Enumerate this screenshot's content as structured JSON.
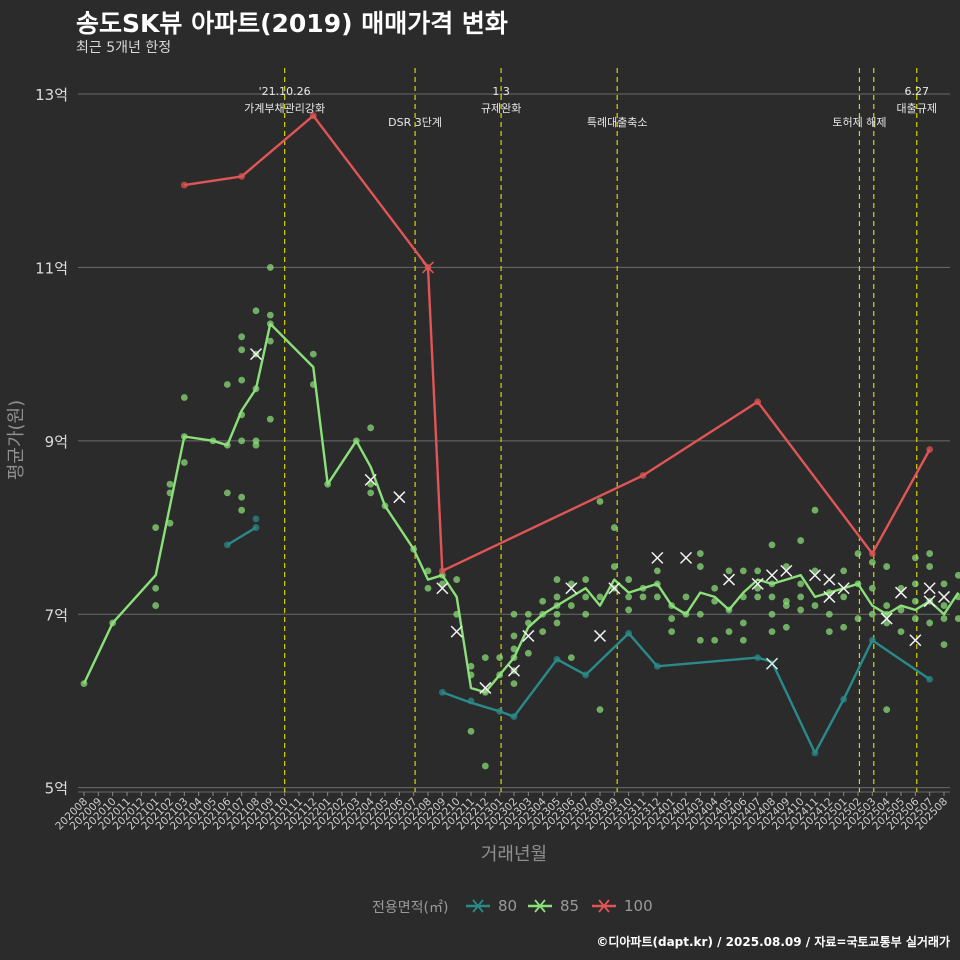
{
  "title": "송도SK뷰 아파트(2019) 매매가격 변화",
  "subtitle": "최근 5개년 한정",
  "caption": "©디아파트(dapt.kr) / 2025.08.09 / 자료=국토교통부 실거래가",
  "colors": {
    "s80": "#2a8a8a",
    "s85": "#8ce07a",
    "s100": "#e05555",
    "vline": "#d8d400",
    "grid": "#6a6a6a",
    "bg": "#2b2b2b"
  },
  "chart_data": {
    "type": "line",
    "title": "송도SK뷰 아파트(2019) 매매가격 변화",
    "subtitle": "최근 5개년 한정",
    "xlabel": "거래년월",
    "ylabel": "평균가(원)",
    "ylim": [
      4.95,
      13.3
    ],
    "yticks": [
      5,
      7,
      9,
      11,
      13
    ],
    "ytick_labels": [
      "5억",
      "7억",
      "9억",
      "11억",
      "13억"
    ],
    "grid": true,
    "legend_title": "전용면적(㎡)",
    "legend_position": "bottom",
    "x_months": [
      "202008",
      "202009",
      "202010",
      "202011",
      "202012",
      "202101",
      "202102",
      "202103",
      "202104",
      "202105",
      "202106",
      "202107",
      "202108",
      "202109",
      "202110",
      "202111",
      "202112",
      "202201",
      "202202",
      "202203",
      "202204",
      "202205",
      "202206",
      "202207",
      "202208",
      "202209",
      "202210",
      "202211",
      "202212",
      "202301",
      "202302",
      "202303",
      "202304",
      "202305",
      "202306",
      "202307",
      "202308",
      "202309",
      "202310",
      "202311",
      "202312",
      "202401",
      "202402",
      "202403",
      "202404",
      "202405",
      "202406",
      "202407",
      "202408",
      "202409",
      "202410",
      "202411",
      "202412",
      "202501",
      "202502",
      "202503",
      "202504",
      "202505",
      "202506",
      "202507",
      "202508"
    ],
    "events": [
      {
        "x": 14.0,
        "lines": [
          "'21.10.26",
          "가계부채관리강화"
        ]
      },
      {
        "x": 23.1,
        "lines": [
          "DSR 3단계"
        ]
      },
      {
        "x": 29.1,
        "lines": [
          "1.3",
          "규제완화"
        ]
      },
      {
        "x": 37.2,
        "lines": [
          "특례대출축소"
        ]
      },
      {
        "x": 54.1,
        "lines": [
          "토허제 해제"
        ]
      },
      {
        "x": 55.1,
        "lines": []
      },
      {
        "x": 58.1,
        "lines": [
          "6.27",
          "대출규제"
        ]
      }
    ],
    "series": [
      {
        "name": "80",
        "color": "#2a8a8a",
        "line": [
          [
            10,
            7.8
          ],
          [
            12,
            8.0
          ]
        ],
        "line2": [
          [
            25,
            6.1
          ],
          [
            27,
            5.98
          ],
          [
            29,
            5.88
          ],
          [
            30,
            5.82
          ],
          [
            33,
            6.48
          ],
          [
            35,
            6.3
          ],
          [
            38,
            6.78
          ],
          [
            40,
            6.4
          ],
          [
            47,
            6.5
          ],
          [
            48,
            6.45
          ],
          [
            51,
            5.4
          ],
          [
            53,
            6.02
          ],
          [
            55,
            6.7
          ],
          [
            59,
            6.25
          ]
        ],
        "points": [
          [
            10,
            7.8
          ],
          [
            12,
            8.0
          ],
          [
            12,
            8.1
          ],
          [
            25,
            6.1
          ],
          [
            27,
            6.0
          ],
          [
            29,
            5.88
          ],
          [
            30,
            5.82
          ],
          [
            33,
            6.48
          ],
          [
            35,
            6.3
          ],
          [
            38,
            6.78
          ],
          [
            40,
            6.4
          ],
          [
            47,
            6.5
          ],
          [
            51,
            5.4
          ],
          [
            53,
            6.02
          ],
          [
            55,
            6.7
          ],
          [
            59,
            6.25
          ]
        ],
        "cancelled": [
          [
            48,
            6.43
          ]
        ]
      },
      {
        "name": "85",
        "color": "#8ce07a",
        "line": [
          [
            0,
            6.2
          ],
          [
            2,
            6.9
          ],
          [
            5,
            7.45
          ],
          [
            7,
            9.05
          ],
          [
            9,
            9.0
          ],
          [
            10,
            8.95
          ],
          [
            11,
            9.35
          ],
          [
            12,
            9.6
          ],
          [
            13,
            10.35
          ],
          [
            16,
            9.85
          ],
          [
            17,
            8.5
          ],
          [
            19,
            9.0
          ],
          [
            20,
            8.7
          ],
          [
            21,
            8.25
          ],
          [
            23,
            7.75
          ],
          [
            24,
            7.4
          ],
          [
            25,
            7.45
          ],
          [
            26,
            7.2
          ],
          [
            27,
            6.15
          ],
          [
            28,
            6.1
          ],
          [
            29,
            6.3
          ],
          [
            30,
            6.5
          ],
          [
            31,
            6.85
          ],
          [
            32,
            7.0
          ],
          [
            33,
            7.1
          ],
          [
            34,
            7.2
          ],
          [
            35,
            7.3
          ],
          [
            36,
            7.1
          ],
          [
            37,
            7.4
          ],
          [
            38,
            7.25
          ],
          [
            39,
            7.3
          ],
          [
            40,
            7.35
          ],
          [
            41,
            7.1
          ],
          [
            42,
            7.0
          ],
          [
            43,
            7.25
          ],
          [
            44,
            7.2
          ],
          [
            45,
            7.05
          ],
          [
            46,
            7.25
          ],
          [
            47,
            7.4
          ],
          [
            48,
            7.35
          ],
          [
            49,
            7.4
          ],
          [
            50,
            7.45
          ],
          [
            51,
            7.2
          ],
          [
            52,
            7.25
          ],
          [
            53,
            7.3
          ],
          [
            54,
            7.35
          ],
          [
            55,
            7.1
          ],
          [
            56,
            7.0
          ],
          [
            57,
            7.1
          ],
          [
            58,
            7.05
          ],
          [
            59,
            7.15
          ],
          [
            60,
            7.0
          ],
          [
            61,
            7.25
          ]
        ],
        "points": [
          [
            0,
            6.2
          ],
          [
            2,
            6.9
          ],
          [
            5,
            7.1
          ],
          [
            5,
            7.3
          ],
          [
            5,
            8.0
          ],
          [
            6,
            8.05
          ],
          [
            6,
            8.4
          ],
          [
            6,
            8.5
          ],
          [
            7,
            9.5
          ],
          [
            7,
            8.75
          ],
          [
            7,
            9.05
          ],
          [
            9,
            9.0
          ],
          [
            10,
            8.95
          ],
          [
            10,
            8.4
          ],
          [
            10,
            9.65
          ],
          [
            11,
            8.2
          ],
          [
            11,
            8.35
          ],
          [
            11,
            9.0
          ],
          [
            11,
            9.3
          ],
          [
            11,
            9.7
          ],
          [
            11,
            10.05
          ],
          [
            11,
            10.2
          ],
          [
            12,
            8.95
          ],
          [
            12,
            9.0
          ],
          [
            12,
            10.0
          ],
          [
            12,
            10.5
          ],
          [
            12,
            9.6
          ],
          [
            13,
            11.0
          ],
          [
            13,
            10.45
          ],
          [
            13,
            10.35
          ],
          [
            13,
            9.25
          ],
          [
            13,
            10.15
          ],
          [
            16,
            10.0
          ],
          [
            16,
            9.65
          ],
          [
            17,
            8.5
          ],
          [
            19,
            9.0
          ],
          [
            20,
            9.15
          ],
          [
            20,
            8.5
          ],
          [
            20,
            8.4
          ],
          [
            21,
            8.25
          ],
          [
            23,
            7.75
          ],
          [
            24,
            7.5
          ],
          [
            24,
            7.3
          ],
          [
            25,
            7.45
          ],
          [
            25,
            7.35
          ],
          [
            26,
            7.4
          ],
          [
            26,
            7.0
          ],
          [
            27,
            6.4
          ],
          [
            27,
            5.65
          ],
          [
            27,
            6.3
          ],
          [
            28,
            5.25
          ],
          [
            28,
            6.5
          ],
          [
            28,
            6.1
          ],
          [
            29,
            6.3
          ],
          [
            29,
            6.5
          ],
          [
            30,
            6.35
          ],
          [
            30,
            6.5
          ],
          [
            30,
            6.6
          ],
          [
            30,
            6.2
          ],
          [
            30,
            7.0
          ],
          [
            30,
            6.75
          ],
          [
            31,
            6.9
          ],
          [
            31,
            6.55
          ],
          [
            31,
            7.0
          ],
          [
            32,
            7.0
          ],
          [
            32,
            7.15
          ],
          [
            32,
            6.8
          ],
          [
            33,
            7.2
          ],
          [
            33,
            7.4
          ],
          [
            33,
            7.1
          ],
          [
            33,
            6.9
          ],
          [
            33,
            7.0
          ],
          [
            34,
            7.35
          ],
          [
            34,
            7.1
          ],
          [
            34,
            6.5
          ],
          [
            35,
            7.4
          ],
          [
            35,
            7.2
          ],
          [
            35,
            7.0
          ],
          [
            36,
            8.3
          ],
          [
            36,
            5.9
          ],
          [
            36,
            7.2
          ],
          [
            37,
            7.55
          ],
          [
            37,
            7.3
          ],
          [
            37,
            8.0
          ],
          [
            38,
            7.4
          ],
          [
            38,
            7.2
          ],
          [
            38,
            7.05
          ],
          [
            39,
            7.3
          ],
          [
            39,
            7.2
          ],
          [
            40,
            7.35
          ],
          [
            40,
            7.2
          ],
          [
            40,
            7.5
          ],
          [
            41,
            7.1
          ],
          [
            41,
            6.8
          ],
          [
            41,
            6.95
          ],
          [
            42,
            7.0
          ],
          [
            42,
            7.2
          ],
          [
            43,
            7.7
          ],
          [
            43,
            7.55
          ],
          [
            43,
            7.0
          ],
          [
            43,
            6.7
          ],
          [
            44,
            7.3
          ],
          [
            44,
            7.15
          ],
          [
            44,
            6.7
          ],
          [
            45,
            7.05
          ],
          [
            45,
            6.8
          ],
          [
            45,
            7.5
          ],
          [
            46,
            7.2
          ],
          [
            46,
            7.5
          ],
          [
            46,
            6.7
          ],
          [
            46,
            6.9
          ],
          [
            47,
            7.5
          ],
          [
            47,
            7.3
          ],
          [
            47,
            7.2
          ],
          [
            48,
            7.8
          ],
          [
            48,
            7.2
          ],
          [
            48,
            7.0
          ],
          [
            48,
            6.8
          ],
          [
            48,
            7.35
          ],
          [
            49,
            7.55
          ],
          [
            49,
            7.15
          ],
          [
            49,
            6.85
          ],
          [
            49,
            7.1
          ],
          [
            50,
            7.85
          ],
          [
            50,
            7.2
          ],
          [
            50,
            7.05
          ],
          [
            50,
            7.35
          ],
          [
            51,
            8.2
          ],
          [
            51,
            7.5
          ],
          [
            51,
            7.1
          ],
          [
            52,
            7.25
          ],
          [
            52,
            7.0
          ],
          [
            52,
            6.8
          ],
          [
            53,
            7.5
          ],
          [
            53,
            7.2
          ],
          [
            53,
            6.85
          ],
          [
            54,
            7.7
          ],
          [
            54,
            7.35
          ],
          [
            54,
            6.95
          ],
          [
            55,
            7.6
          ],
          [
            55,
            7.0
          ],
          [
            55,
            7.3
          ],
          [
            56,
            7.1
          ],
          [
            56,
            7.0
          ],
          [
            56,
            6.9
          ],
          [
            57,
            7.05
          ],
          [
            57,
            6.8
          ],
          [
            57,
            7.3
          ],
          [
            58,
            7.35
          ],
          [
            58,
            7.15
          ],
          [
            58,
            6.95
          ],
          [
            59,
            7.55
          ],
          [
            59,
            7.15
          ],
          [
            59,
            6.9
          ],
          [
            60,
            7.35
          ],
          [
            60,
            7.1
          ],
          [
            60,
            6.95
          ],
          [
            61,
            7.45
          ],
          [
            61,
            7.2
          ],
          [
            61,
            6.95
          ],
          [
            62,
            7.25
          ],
          [
            56,
            5.9
          ],
          [
            56,
            7.55
          ],
          [
            58,
            7.65
          ],
          [
            59,
            7.7
          ],
          [
            60,
            6.65
          ]
        ],
        "cancelled": [
          [
            12,
            10.0
          ],
          [
            20,
            8.55
          ],
          [
            22,
            8.35
          ],
          [
            25,
            7.3
          ],
          [
            26,
            6.8
          ],
          [
            28,
            6.15
          ],
          [
            30,
            6.35
          ],
          [
            31,
            6.75
          ],
          [
            34,
            7.3
          ],
          [
            36,
            6.75
          ],
          [
            37,
            7.3
          ],
          [
            40,
            7.65
          ],
          [
            42,
            7.65
          ],
          [
            45,
            7.4
          ],
          [
            47,
            7.35
          ],
          [
            48,
            7.45
          ],
          [
            49,
            7.5
          ],
          [
            51,
            7.45
          ],
          [
            52,
            7.2
          ],
          [
            52,
            7.4
          ],
          [
            53,
            7.3
          ],
          [
            56,
            6.95
          ],
          [
            57,
            7.25
          ],
          [
            58,
            6.7
          ],
          [
            59,
            7.15
          ],
          [
            59,
            7.3
          ],
          [
            60,
            7.2
          ]
        ]
      },
      {
        "name": "100",
        "color": "#e05555",
        "line": [
          [
            7,
            11.95
          ],
          [
            11,
            12.05
          ],
          [
            16,
            12.75
          ],
          [
            24,
            11.0
          ],
          [
            25,
            7.5
          ],
          [
            39,
            8.6
          ],
          [
            47,
            9.45
          ],
          [
            55,
            7.7
          ],
          [
            59,
            8.9
          ]
        ],
        "points": [
          [
            7,
            11.95
          ],
          [
            11,
            12.05
          ],
          [
            16,
            12.75
          ],
          [
            24,
            11.0
          ],
          [
            25,
            7.5
          ],
          [
            39,
            8.6
          ],
          [
            47,
            9.45
          ],
          [
            55,
            7.7
          ],
          [
            59,
            8.9
          ]
        ],
        "cancelled": [
          [
            24,
            11.0
          ]
        ]
      }
    ]
  }
}
